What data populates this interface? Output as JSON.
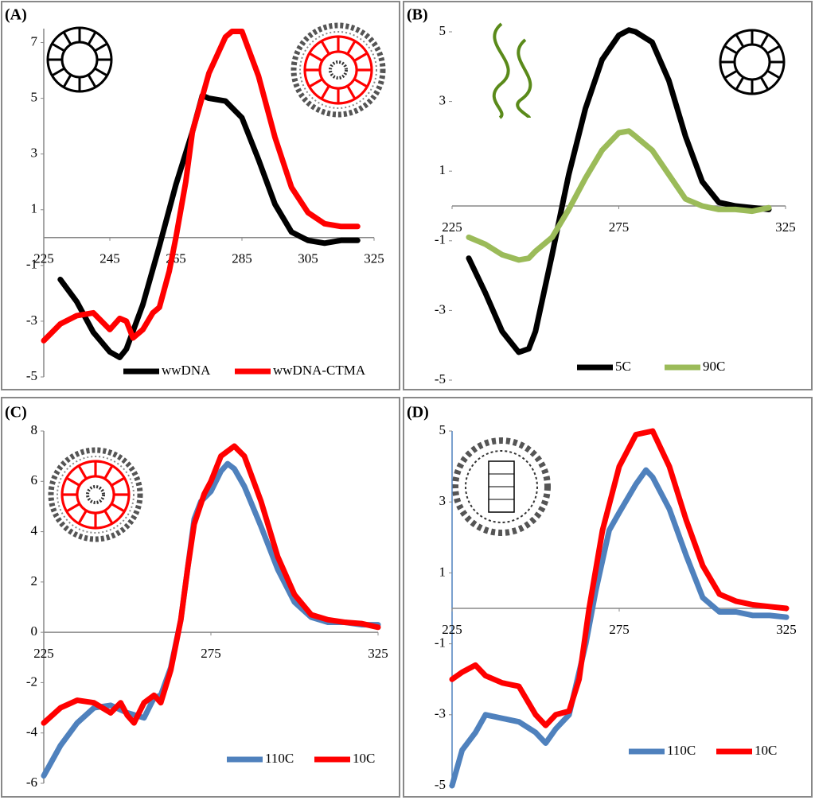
{
  "chart_data": [
    {
      "type": "line",
      "label": "(A)",
      "xlim": [
        225,
        325
      ],
      "xticks": [
        225,
        245,
        265,
        285,
        305,
        325
      ],
      "ylim": [
        -5,
        7.5
      ],
      "yticks": [
        -5,
        -3,
        -1,
        1,
        3,
        5,
        7
      ],
      "legend": "bottom",
      "series": [
        {
          "name": "wwDNA",
          "color": "#000000",
          "x": [
            230,
            235,
            240,
            245,
            248,
            250,
            255,
            260,
            265,
            270,
            273,
            275,
            280,
            285,
            290,
            295,
            300,
            305,
            310,
            315,
            320
          ],
          "values": [
            -1.5,
            -2.3,
            -3.4,
            -4.1,
            -4.3,
            -4.0,
            -2.4,
            -0.3,
            1.9,
            3.8,
            5.1,
            5.0,
            4.9,
            4.3,
            2.8,
            1.2,
            0.2,
            -0.1,
            -0.2,
            -0.1,
            -0.1
          ]
        },
        {
          "name": "wwDNA-CTMA",
          "color": "#ff0000",
          "x": [
            225,
            230,
            235,
            240,
            245,
            248,
            250,
            252,
            255,
            258,
            260,
            263,
            265,
            268,
            270,
            275,
            280,
            282,
            285,
            290,
            295,
            300,
            305,
            310,
            315,
            320
          ],
          "values": [
            -3.7,
            -3.1,
            -2.8,
            -2.7,
            -3.3,
            -2.9,
            -3.0,
            -3.6,
            -3.3,
            -2.7,
            -2.5,
            -1.2,
            0,
            2,
            3.8,
            5.9,
            7.2,
            7.4,
            7.4,
            5.8,
            3.6,
            1.8,
            0.9,
            0.5,
            0.4,
            0.4
          ]
        }
      ]
    },
    {
      "type": "line",
      "label": "(B)",
      "xlim": [
        225,
        325
      ],
      "xticks": [
        225,
        275,
        325
      ],
      "ylim": [
        -5,
        5
      ],
      "yticks": [
        -5,
        -3,
        -1,
        1,
        3,
        5
      ],
      "legend": "bottom",
      "series": [
        {
          "name": "5C",
          "color": "#000000",
          "x": [
            230,
            235,
            240,
            245,
            248,
            250,
            255,
            258,
            260,
            265,
            270,
            275,
            278,
            280,
            285,
            290,
            295,
            300,
            305,
            310,
            315,
            320
          ],
          "values": [
            -1.5,
            -2.5,
            -3.6,
            -4.2,
            -4.1,
            -3.6,
            -1.4,
            0,
            0.9,
            2.8,
            4.2,
            4.9,
            5.05,
            5.0,
            4.7,
            3.6,
            2.0,
            0.7,
            0.1,
            0,
            -0.05,
            -0.1
          ]
        },
        {
          "name": "90C",
          "color": "#9bbb59",
          "x": [
            230,
            235,
            240,
            245,
            248,
            250,
            255,
            260,
            265,
            270,
            275,
            278,
            280,
            285,
            290,
            295,
            300,
            305,
            310,
            315,
            320
          ],
          "values": [
            -0.9,
            -1.1,
            -1.4,
            -1.55,
            -1.5,
            -1.3,
            -0.9,
            -0.1,
            0.8,
            1.6,
            2.1,
            2.15,
            2.0,
            1.6,
            0.9,
            0.2,
            0.0,
            -0.1,
            -0.1,
            -0.15,
            -0.05
          ]
        }
      ]
    },
    {
      "type": "line",
      "label": "(C)",
      "xlim": [
        225,
        325
      ],
      "xticks": [
        225,
        275,
        325
      ],
      "ylim": [
        -6,
        8
      ],
      "yticks": [
        -6,
        -4,
        -2,
        0,
        2,
        4,
        6,
        8
      ],
      "legend": "bottom",
      "series": [
        {
          "name": "110C",
          "color": "#4f81bd",
          "x": [
            225,
            230,
            235,
            240,
            245,
            250,
            255,
            258,
            260,
            263,
            266,
            268,
            270,
            272,
            275,
            278,
            280,
            282,
            285,
            290,
            295,
            300,
            305,
            310,
            315,
            320,
            325
          ],
          "values": [
            -5.7,
            -4.5,
            -3.6,
            -3.0,
            -2.9,
            -3.2,
            -3.4,
            -2.6,
            -2.5,
            -1.4,
            0.5,
            2.5,
            4.5,
            5.2,
            5.6,
            6.4,
            6.7,
            6.5,
            5.8,
            4.2,
            2.5,
            1.2,
            0.6,
            0.4,
            0.4,
            0.3,
            0.3
          ]
        },
        {
          "name": "10C",
          "color": "#ff0000",
          "x": [
            225,
            230,
            235,
            240,
            245,
            248,
            250,
            252,
            255,
            258,
            260,
            263,
            266,
            268,
            270,
            273,
            275,
            278,
            282,
            285,
            290,
            295,
            300,
            305,
            310,
            315,
            320,
            325
          ],
          "values": [
            -3.6,
            -3.0,
            -2.7,
            -2.8,
            -3.2,
            -2.8,
            -3.3,
            -3.6,
            -2.8,
            -2.5,
            -2.8,
            -1.5,
            0.5,
            2.5,
            4.3,
            5.5,
            6.0,
            7.0,
            7.4,
            7.0,
            5.2,
            3.0,
            1.5,
            0.7,
            0.5,
            0.4,
            0.35,
            0.2
          ]
        }
      ]
    },
    {
      "type": "line",
      "label": "(D)",
      "xlim": [
        225,
        325
      ],
      "xticks": [
        225,
        275,
        325
      ],
      "ylim": [
        -5,
        5
      ],
      "yticks": [
        -5,
        -3,
        -1,
        1,
        3,
        5
      ],
      "legend": "bottom",
      "series": [
        {
          "name": "110C",
          "color": "#4f81bd",
          "x": [
            225,
            228,
            232,
            235,
            240,
            245,
            250,
            253,
            256,
            260,
            265,
            268,
            272,
            275,
            280,
            283,
            285,
            290,
            295,
            300,
            305,
            310,
            315,
            320,
            325
          ],
          "values": [
            -5.0,
            -4.0,
            -3.5,
            -3.0,
            -3.1,
            -3.2,
            -3.5,
            -3.8,
            -3.4,
            -3.0,
            -1.0,
            0.5,
            2.2,
            2.7,
            3.5,
            3.9,
            3.7,
            2.8,
            1.5,
            0.3,
            -0.1,
            -0.1,
            -0.2,
            -0.2,
            -0.25
          ]
        },
        {
          "name": "10C",
          "color": "#ff0000",
          "x": [
            225,
            228,
            232,
            235,
            240,
            245,
            250,
            253,
            256,
            260,
            263,
            266,
            270,
            275,
            280,
            285,
            290,
            295,
            300,
            305,
            310,
            315,
            320,
            325
          ],
          "values": [
            -2.0,
            -1.8,
            -1.6,
            -1.9,
            -2.1,
            -2.2,
            -3.0,
            -3.3,
            -3.0,
            -2.9,
            -2.0,
            0,
            2.2,
            4.0,
            4.9,
            5.0,
            4.0,
            2.5,
            1.2,
            0.4,
            0.2,
            0.1,
            0.05,
            0
          ]
        }
      ]
    }
  ]
}
